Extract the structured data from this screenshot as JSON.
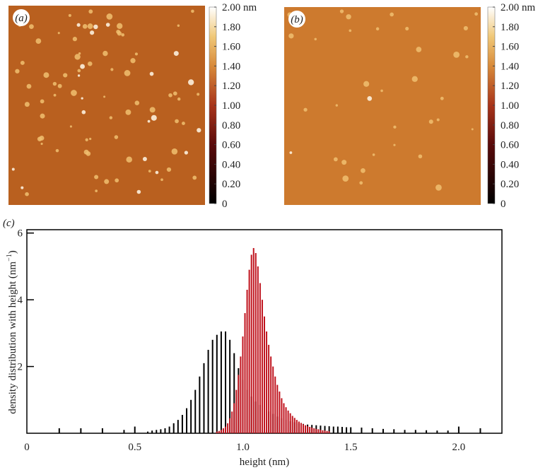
{
  "chart_data": [
    {
      "type": "colorbar",
      "label": "(a)",
      "ylim": [
        0,
        2
      ],
      "yticks": [
        {
          "value": 2,
          "label": "2.00 nm"
        },
        {
          "value": 1.8,
          "label": "1.80"
        },
        {
          "value": 1.6,
          "label": "1.60"
        },
        {
          "value": 1.4,
          "label": "1.40"
        },
        {
          "value": 1.2,
          "label": "1.20"
        },
        {
          "value": 1,
          "label": "1.00"
        },
        {
          "value": 0.8,
          "label": "0.80"
        },
        {
          "value": 0.6,
          "label": "0.60"
        },
        {
          "value": 0.4,
          "label": "0.40"
        },
        {
          "value": 0.2,
          "label": "0.20"
        },
        0
      ]
    },
    {
      "type": "colorbar",
      "label": "(b)",
      "ylim": [
        0,
        2
      ],
      "yticks": [
        {
          "value": 2,
          "label": "2.00 nm"
        },
        {
          "value": 1.8,
          "label": "1.80"
        },
        {
          "value": 1.6,
          "label": "1.60"
        },
        {
          "value": 1.4,
          "label": "1.40"
        },
        {
          "value": 1.2,
          "label": "1.20"
        },
        {
          "value": 1,
          "label": "1.00"
        },
        {
          "value": 0.8,
          "label": "0.80"
        },
        {
          "value": 0.6,
          "label": "0.60"
        },
        {
          "value": 0.4,
          "label": "0.40"
        },
        {
          "value": 0.2,
          "label": "0.20"
        },
        0
      ]
    },
    {
      "type": "bar",
      "label": "(c)",
      "xlabel": "height (nm)",
      "ylabel": [
        "density distribution with height (nm",
        "−1",
        ")"
      ],
      "xlim": [
        0,
        2.2
      ],
      "ylim": [
        0,
        6.1
      ],
      "xticks": [
        0,
        0.5,
        {
          "value": 1,
          "label": "1.0"
        },
        1.5,
        {
          "value": 2,
          "label": "2.0"
        }
      ],
      "yticks": [
        2,
        4,
        6
      ],
      "series": [
        {
          "color": "#000000",
          "x": [
            0.15,
            0.25,
            0.35,
            0.45,
            0.5,
            0.56,
            0.58,
            0.6,
            0.62,
            0.64,
            0.66,
            0.68,
            0.7,
            0.72,
            0.74,
            0.76,
            0.78,
            0.8,
            0.82,
            0.84,
            0.86,
            0.88,
            0.9,
            0.92,
            0.94,
            0.96,
            0.98,
            1.0,
            1.02,
            1.04,
            1.06,
            1.08,
            1.1,
            1.12,
            1.14,
            1.16,
            1.18,
            1.2,
            1.22,
            1.24,
            1.26,
            1.28,
            1.3,
            1.32,
            1.34,
            1.36,
            1.38,
            1.4,
            1.42,
            1.44,
            1.46,
            1.48,
            1.5,
            1.55,
            1.6,
            1.65,
            1.7,
            1.75,
            1.8,
            1.85,
            1.9,
            1.95,
            2.0,
            2.1
          ],
          "values": [
            0.15,
            0.15,
            0.15,
            0.1,
            0.2,
            0.05,
            0.08,
            0.1,
            0.12,
            0.15,
            0.2,
            0.3,
            0.4,
            0.55,
            0.75,
            1.0,
            1.3,
            1.7,
            2.1,
            2.5,
            2.8,
            2.95,
            3.05,
            3.05,
            2.8,
            2.4,
            1.95,
            1.6,
            1.3,
            1.1,
            0.95,
            0.85,
            0.75,
            0.65,
            0.58,
            0.5,
            0.45,
            0.4,
            0.36,
            0.33,
            0.3,
            0.28,
            0.26,
            0.25,
            0.24,
            0.23,
            0.22,
            0.21,
            0.2,
            0.2,
            0.19,
            0.18,
            0.18,
            0.17,
            0.15,
            0.13,
            0.12,
            0.1,
            0.1,
            0.09,
            0.08,
            0.08,
            0.2,
            0.15
          ]
        },
        {
          "color": "#c0141e",
          "x": [
            0.88,
            0.89,
            0.9,
            0.91,
            0.92,
            0.93,
            0.94,
            0.95,
            0.96,
            0.97,
            0.98,
            0.99,
            1.0,
            1.01,
            1.02,
            1.03,
            1.04,
            1.05,
            1.06,
            1.07,
            1.08,
            1.09,
            1.1,
            1.11,
            1.12,
            1.13,
            1.14,
            1.15,
            1.16,
            1.17,
            1.18,
            1.19,
            1.2,
            1.21,
            1.22,
            1.23,
            1.24,
            1.25,
            1.26,
            1.27,
            1.28,
            1.29,
            1.3,
            1.31,
            1.32,
            1.33,
            1.34,
            1.35,
            1.36,
            1.37,
            1.38,
            1.39,
            1.4
          ],
          "values": [
            0.05,
            0.07,
            0.1,
            0.15,
            0.2,
            0.3,
            0.45,
            0.65,
            0.9,
            1.3,
            1.75,
            2.3,
            2.9,
            3.6,
            4.3,
            4.9,
            5.35,
            5.55,
            5.4,
            5.0,
            4.5,
            4.0,
            3.5,
            3.05,
            2.65,
            2.3,
            2.0,
            1.7,
            1.45,
            1.25,
            1.05,
            0.9,
            0.78,
            0.68,
            0.6,
            0.52,
            0.46,
            0.4,
            0.35,
            0.31,
            0.27,
            0.24,
            0.21,
            0.19,
            0.17,
            0.15,
            0.13,
            0.12,
            0.1,
            0.09,
            0.08,
            0.07,
            0.06
          ]
        }
      ]
    }
  ]
}
